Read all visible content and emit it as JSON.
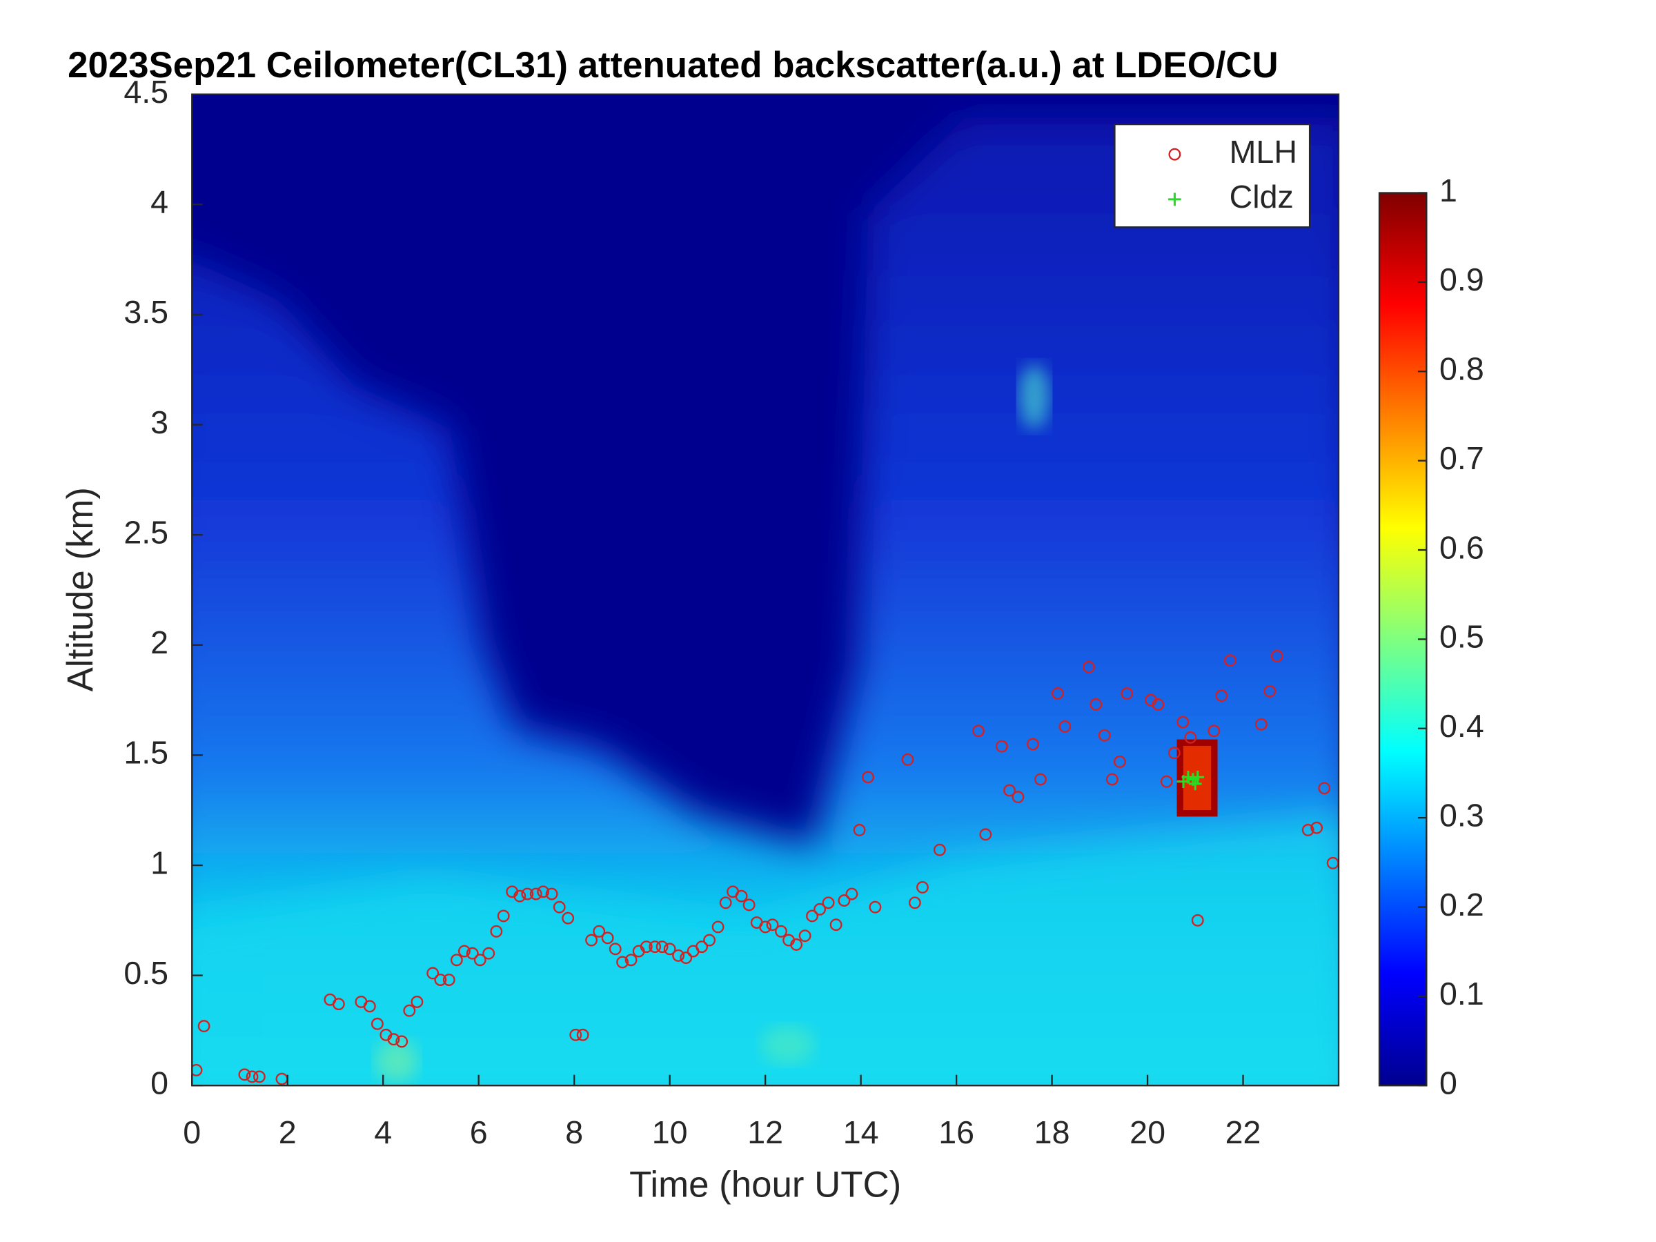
{
  "chart_data": {
    "type": "scatter",
    "title": "2023Sep21 Ceilometer(CL31) attenuated backscatter(a.u.) at LDEO/CU",
    "x_label": "Time (hour UTC)",
    "y_label": "Altitude (km)",
    "xlim": [
      0,
      24
    ],
    "xticks": [
      0,
      2,
      4,
      6,
      8,
      10,
      12,
      14,
      16,
      18,
      20,
      22
    ],
    "ylim": [
      0,
      4.5
    ],
    "yticks": [
      0,
      0.5,
      1,
      1.5,
      2,
      2.5,
      3,
      3.5,
      4,
      4.5
    ],
    "legend": "upper right",
    "colorbar": {
      "lim": [
        0,
        1
      ],
      "ticks": [
        0,
        0.1,
        0.2,
        0.3,
        0.4,
        0.5,
        0.6,
        0.7,
        0.8,
        0.9,
        1
      ]
    },
    "series": [
      {
        "name": "MLH",
        "color": "#d42020",
        "marker": "circle",
        "x": [
          0.09,
          0.25,
          1.1,
          1.26,
          1.41,
          1.88,
          2.89,
          3.07,
          3.54,
          3.72,
          3.88,
          4.06,
          4.22,
          4.39,
          4.55,
          4.71,
          5.04,
          5.2,
          5.38,
          5.54,
          5.7,
          5.87,
          6.03,
          6.21,
          6.37,
          6.52,
          6.7,
          6.86,
          7.02,
          7.2,
          7.35,
          7.53,
          7.69,
          7.87,
          8.03,
          8.18,
          8.36,
          8.52,
          8.7,
          8.86,
          9.01,
          9.19,
          9.35,
          9.51,
          9.69,
          9.84,
          10.0,
          10.18,
          10.34,
          10.49,
          10.67,
          10.83,
          11.01,
          11.17,
          11.32,
          11.5,
          11.66,
          11.82,
          12.0,
          12.15,
          12.33,
          12.49,
          12.65,
          12.83,
          12.98,
          13.14,
          13.32,
          13.48,
          13.65,
          13.81,
          13.97,
          14.15,
          14.3,
          14.98,
          15.13,
          15.29,
          15.65,
          16.46,
          16.61,
          16.95,
          17.11,
          17.29,
          17.6,
          17.76,
          18.12,
          18.27,
          18.77,
          18.92,
          19.1,
          19.26,
          19.42,
          19.57,
          20.07,
          20.22,
          20.4,
          20.56,
          20.74,
          20.9,
          21.05,
          21.39,
          21.55,
          21.73,
          22.38,
          22.56,
          22.71,
          23.36,
          23.54,
          23.7,
          23.88
        ],
        "values": [
          0.07,
          0.27,
          0.05,
          0.04,
          0.04,
          0.03,
          0.39,
          0.37,
          0.38,
          0.36,
          0.28,
          0.23,
          0.21,
          0.2,
          0.34,
          0.38,
          0.51,
          0.48,
          0.48,
          0.57,
          0.61,
          0.6,
          0.57,
          0.6,
          0.7,
          0.77,
          0.88,
          0.86,
          0.87,
          0.87,
          0.88,
          0.87,
          0.81,
          0.76,
          0.23,
          0.23,
          0.66,
          0.7,
          0.67,
          0.62,
          0.56,
          0.57,
          0.61,
          0.63,
          0.63,
          0.63,
          0.62,
          0.59,
          0.58,
          0.61,
          0.63,
          0.66,
          0.72,
          0.83,
          0.88,
          0.86,
          0.82,
          0.74,
          0.72,
          0.73,
          0.7,
          0.66,
          0.64,
          0.68,
          0.77,
          0.8,
          0.83,
          0.73,
          0.84,
          0.87,
          1.16,
          1.4,
          0.81,
          1.48,
          0.83,
          0.9,
          1.07,
          1.61,
          1.14,
          1.54,
          1.34,
          1.31,
          1.55,
          1.39,
          1.78,
          1.63,
          1.9,
          1.73,
          1.59,
          1.39,
          1.47,
          1.78,
          1.75,
          1.73,
          1.38,
          1.51,
          1.65,
          1.58,
          0.75,
          1.61,
          1.77,
          1.93,
          1.64,
          1.79,
          1.95,
          1.16,
          1.17,
          1.35,
          1.01
        ]
      },
      {
        "name": "Cldz",
        "color": "#22dd22",
        "marker": "plus",
        "x": [
          20.75,
          20.85,
          20.95,
          21.0,
          21.05
        ],
        "values": [
          1.38,
          1.4,
          1.39,
          1.37,
          1.4
        ]
      }
    ]
  }
}
